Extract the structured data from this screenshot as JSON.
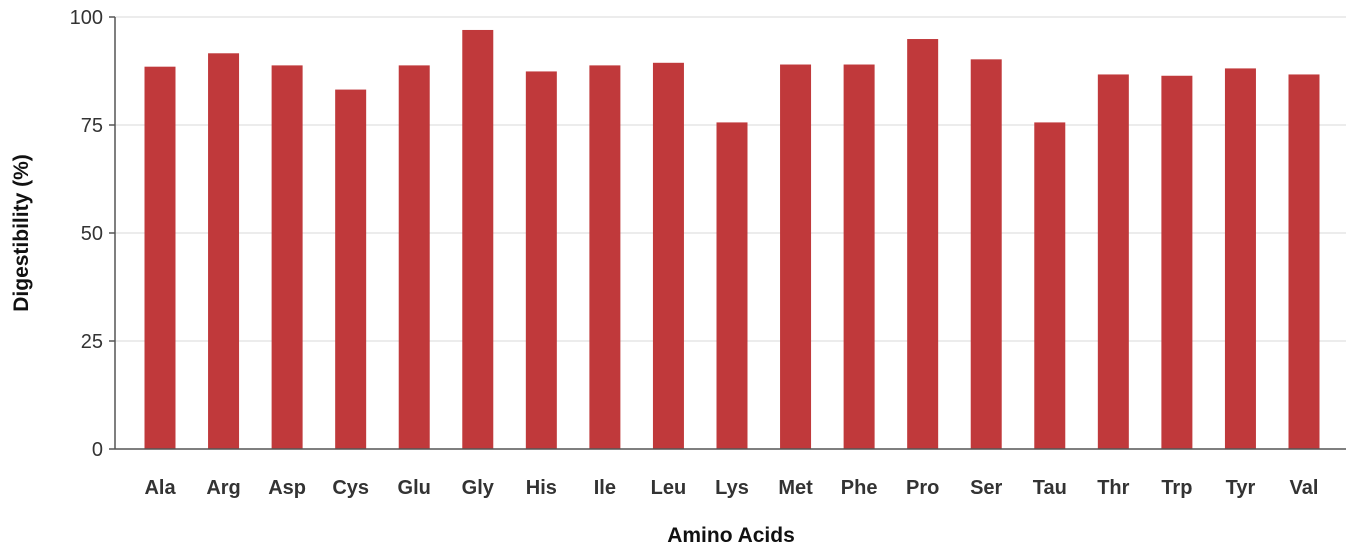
{
  "chart_data": {
    "type": "bar",
    "xlabel": "Amino Acids",
    "ylabel": "Digestibility (%)",
    "ylim": [
      0,
      100
    ],
    "yticks": [
      0,
      25,
      50,
      75,
      100
    ],
    "grid": true,
    "bar_color": "#c0393b",
    "categories": [
      "Ala",
      "Arg",
      "Asp",
      "Cys",
      "Glu",
      "Gly",
      "His",
      "Ile",
      "Leu",
      "Lys",
      "Met",
      "Phe",
      "Pro",
      "Ser",
      "Tau",
      "Thr",
      "Trp",
      "Tyr",
      "Val"
    ],
    "values": [
      88.5,
      91.6,
      88.8,
      83.2,
      88.8,
      97.0,
      87.4,
      88.8,
      89.4,
      75.6,
      89.0,
      89.0,
      94.9,
      90.2,
      75.6,
      86.7,
      86.4,
      88.1,
      86.7
    ]
  }
}
